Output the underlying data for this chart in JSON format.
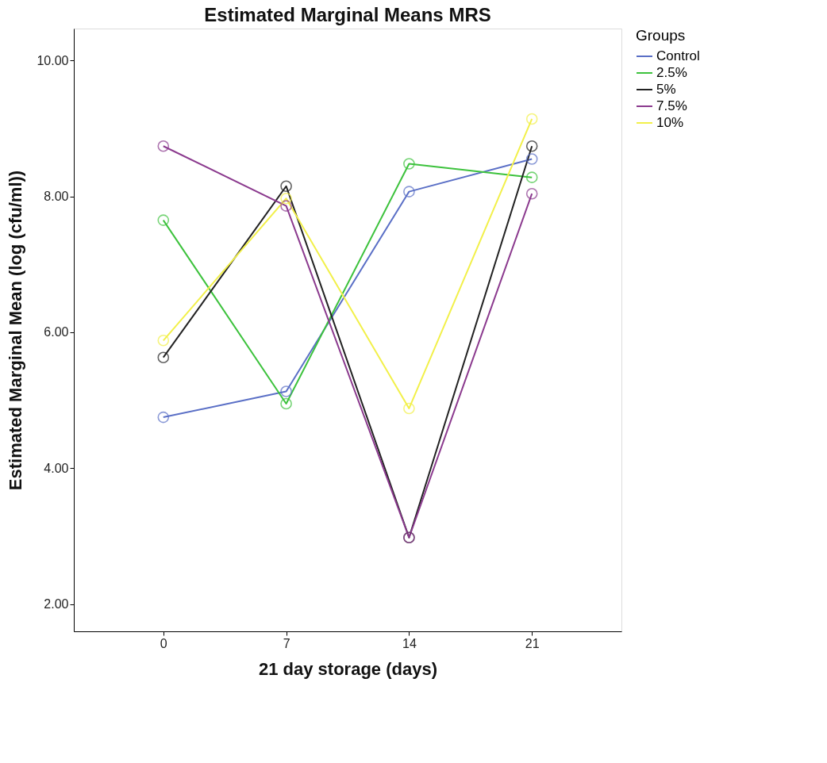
{
  "chart_data": {
    "type": "line",
    "title": "Estimated Marginal Means MRS",
    "xlabel": "21 day storage (days)",
    "ylabel": "Estimated Marginal Mean (log (cfu/ml))",
    "legend_title": "Groups",
    "x": [
      0,
      7,
      14,
      21
    ],
    "xlim": [
      -5.1,
      26.1
    ],
    "xticks": [
      0,
      7,
      14,
      21
    ],
    "ylim": [
      1.6,
      10.47
    ],
    "yticks": [
      {
        "value": 2,
        "label": "2.00"
      },
      {
        "value": 4,
        "label": "4.00"
      },
      {
        "value": 6,
        "label": "6.00"
      },
      {
        "value": 8,
        "label": "8.00"
      },
      {
        "value": 10,
        "label": "10.00"
      }
    ],
    "series": [
      {
        "name": "Control",
        "color": "#5a6fc6",
        "values": [
          4.75,
          5.13,
          8.07,
          8.55
        ]
      },
      {
        "name": "2.5%",
        "color": "#3dc23d",
        "values": [
          7.65,
          4.95,
          8.48,
          8.28
        ]
      },
      {
        "name": "5%",
        "color": "#222222",
        "values": [
          5.63,
          8.15,
          2.98,
          8.74
        ]
      },
      {
        "name": "7.5%",
        "color": "#8b3a8e",
        "values": [
          8.74,
          7.86,
          2.98,
          8.04
        ]
      },
      {
        "name": "10%",
        "color": "#f2f04a",
        "values": [
          5.88,
          7.97,
          4.88,
          9.14
        ]
      }
    ],
    "marker": "circle",
    "line_style": "solid",
    "grid": false,
    "legend": "top right"
  }
}
